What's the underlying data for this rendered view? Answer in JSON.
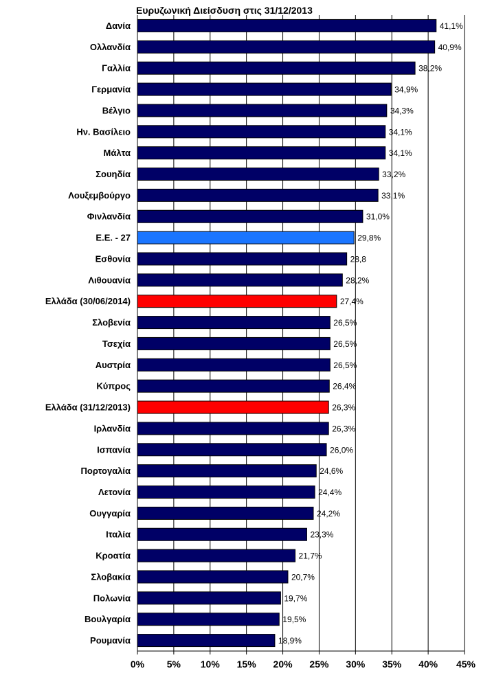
{
  "chart_data": {
    "type": "bar",
    "orientation": "horizontal",
    "title": "Ευρυζωνική Διείσδυση στις 31/12/2013",
    "xlabel": "",
    "ylabel": "",
    "xlim": [
      0,
      45
    ],
    "grid": "vertical",
    "colors": {
      "default": "#000066",
      "eu": "#1a75ff",
      "greece": "#ff0000"
    },
    "categories": [
      "Δανία",
      "Ολλανδία",
      "Γαλλία",
      "Γερμανία",
      "Βέλγιο",
      "Ην. Βασίλειο",
      "Μάλτα",
      "Σουηδία",
      "Λουξεμβούργο",
      "Φινλανδία",
      "Ε.Ε. - 27",
      "Εσθονία",
      "Λιθουανία",
      "Ελλάδα (30/06/2014)",
      "Σλοβενία",
      "Τσεχία",
      "Αυστρία",
      "Κύπρος",
      "Ελλάδα (31/12/2013)",
      "Ιρλανδία",
      "Ισπανία",
      "Πορτογαλία",
      "Λετονία",
      "Ουγγαρία",
      "Ιταλία",
      "Κροατία",
      "Σλοβακία",
      "Πολωνία",
      "Βουλγαρία",
      "Ρουμανία"
    ],
    "values": [
      41.1,
      40.9,
      38.2,
      34.9,
      34.3,
      34.1,
      34.1,
      33.2,
      33.1,
      31.0,
      29.8,
      28.8,
      28.2,
      27.4,
      26.5,
      26.5,
      26.5,
      26.4,
      26.3,
      26.3,
      26.0,
      24.6,
      24.4,
      24.2,
      23.3,
      21.7,
      20.7,
      19.7,
      19.5,
      18.9
    ],
    "value_labels": [
      "41,1%",
      "40,9%",
      "38,2%",
      "34,9%",
      "34,3%",
      "34,1%",
      "34,1%",
      "33,2%",
      "33,1%",
      "31,0%",
      "29,8%",
      "28,8",
      "28,2%",
      "27,4%",
      "26,5%",
      "26,5%",
      "26,5%",
      "26,4%",
      "26,3%",
      "26,3%",
      "26,0%",
      "24,6%",
      "24,4%",
      "24,2%",
      "23,3%",
      "21,7%",
      "20,7%",
      "19,7%",
      "19,5%",
      "18,9%"
    ],
    "bar_colors": [
      "default",
      "default",
      "default",
      "default",
      "default",
      "default",
      "default",
      "default",
      "default",
      "default",
      "eu",
      "default",
      "default",
      "greece",
      "default",
      "default",
      "default",
      "default",
      "greece",
      "default",
      "default",
      "default",
      "default",
      "default",
      "default",
      "default",
      "default",
      "default",
      "default",
      "default"
    ],
    "ticks": [
      0,
      5,
      10,
      15,
      20,
      25,
      30,
      35,
      40,
      45
    ],
    "tick_labels": [
      "0%",
      "5%",
      "10%",
      "15%",
      "20%",
      "25%",
      "30%",
      "35%",
      "40%",
      "45%"
    ]
  }
}
